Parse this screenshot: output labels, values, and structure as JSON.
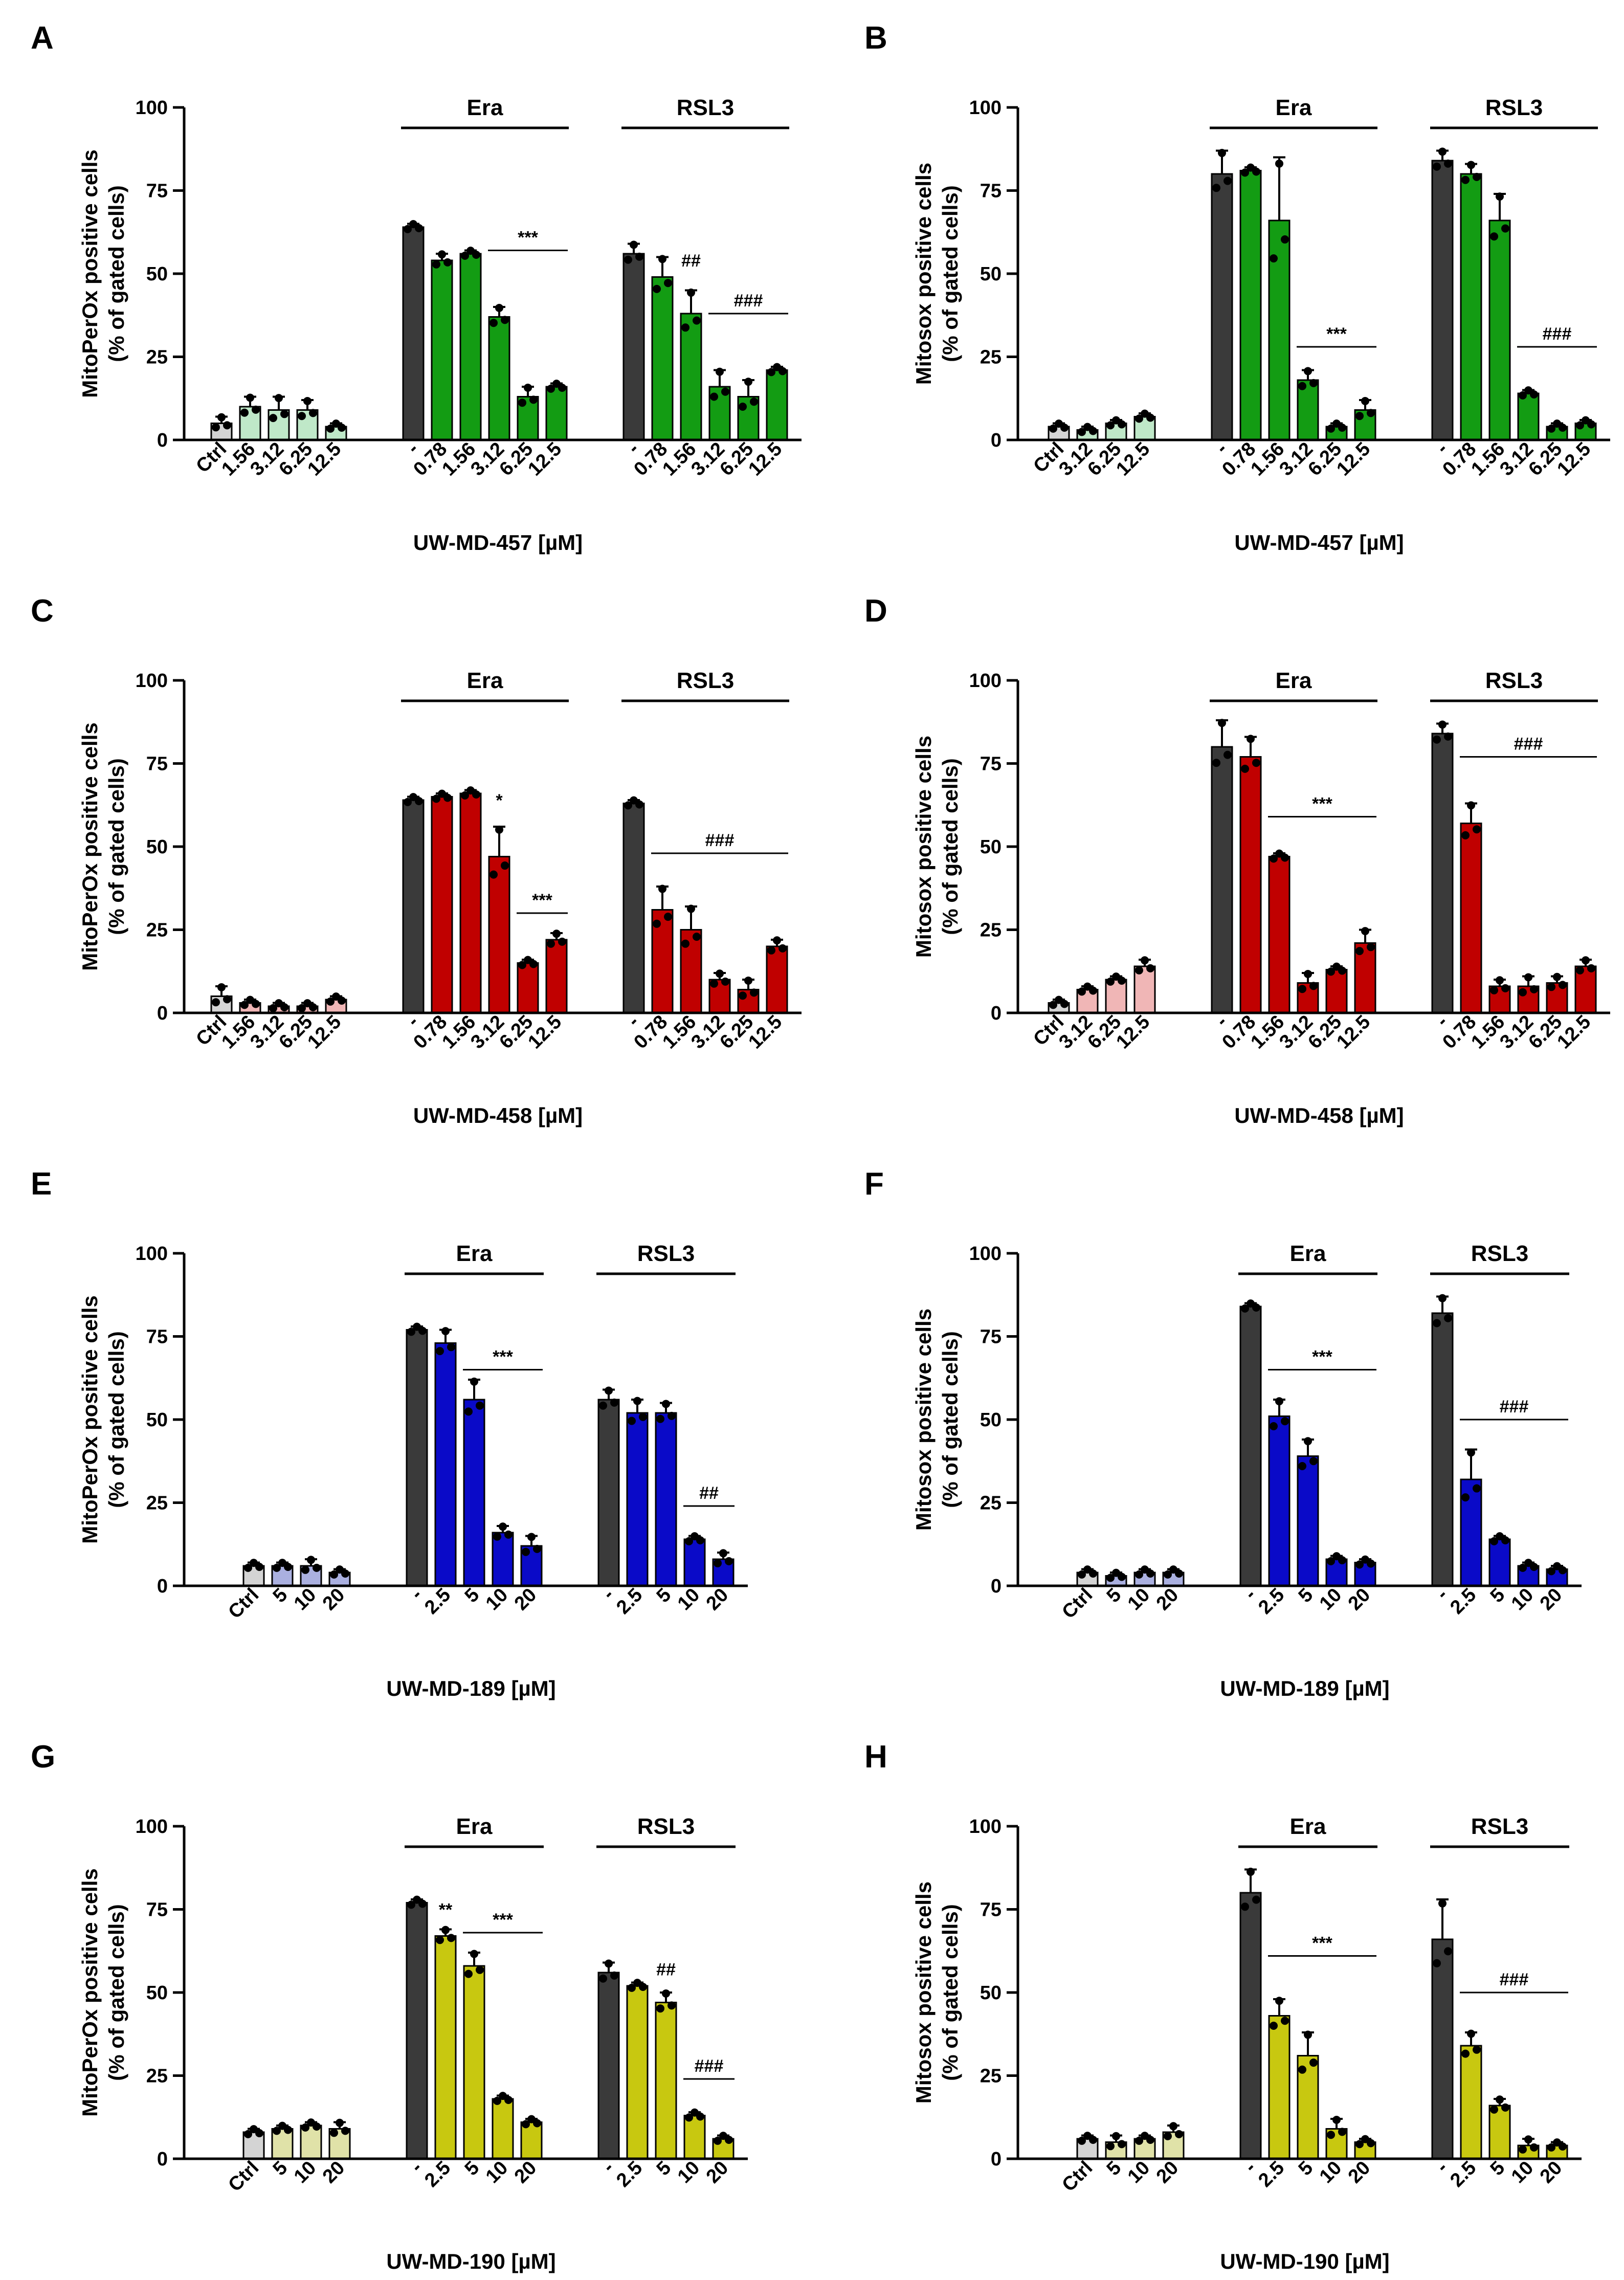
{
  "colors": {
    "control": "#3a3a3a",
    "light_green": "#bfe8c8",
    "green": "#139c13",
    "light_red": "#f0b6b6",
    "red": "#c00000",
    "light_blue": "#aab0e0",
    "blue": "#0a0ac8",
    "light_yellow": "#e0e2a8",
    "yellow": "#c8c810",
    "ctrl_gray": "#d4d4d4"
  },
  "chart_data": [
    {
      "panel": "A",
      "type": "bar",
      "ylabel": "MitoPerOx positive cells\n(% of gated cells)",
      "xlabel": "UW-MD-457 [µM]",
      "ylim": [
        0,
        100
      ],
      "yticks": [
        "0",
        "25",
        "50",
        "75",
        "100"
      ],
      "groups": [
        {
          "label": "",
          "categories": [
            "Ctrl",
            "1.56",
            "3.12",
            "6.25",
            "12.5"
          ],
          "values": [
            5,
            10,
            9,
            9,
            4
          ],
          "errors": [
            2,
            3,
            4,
            3,
            1
          ],
          "colors": [
            "#d4d4d4",
            "#bfe8c8",
            "#bfe8c8",
            "#bfe8c8",
            "#bfe8c8"
          ]
        },
        {
          "label": "Era",
          "categories": [
            "-",
            "0.78",
            "1.56",
            "3.12",
            "6.25",
            "12.5"
          ],
          "values": [
            64,
            54,
            56,
            37,
            13,
            16
          ],
          "errors": [
            1,
            2,
            1,
            3,
            3,
            1
          ],
          "colors": [
            "#3a3a3a",
            "#139c13",
            "#139c13",
            "#139c13",
            "#139c13",
            "#139c13"
          ]
        },
        {
          "label": "RSL3",
          "categories": [
            "-",
            "0.78",
            "1.56",
            "3.12",
            "6.25",
            "12.5"
          ],
          "values": [
            56,
            49,
            38,
            16,
            13,
            21
          ],
          "errors": [
            3,
            6,
            7,
            5,
            5,
            1
          ],
          "colors": [
            "#3a3a3a",
            "#139c13",
            "#139c13",
            "#139c13",
            "#139c13",
            "#139c13"
          ]
        }
      ],
      "annotations": [
        {
          "text": "***",
          "group": 1,
          "from": 3,
          "to": 5,
          "y": 57
        },
        {
          "text": "##",
          "group": 2,
          "from": 2,
          "to": 2,
          "y": 50
        },
        {
          "text": "###",
          "group": 2,
          "from": 3,
          "to": 5,
          "y": 38
        }
      ]
    },
    {
      "panel": "B",
      "type": "bar",
      "ylabel": "Mitosox positive cells\n(% of gated cells)",
      "xlabel": "UW-MD-457 [µM]",
      "ylim": [
        0,
        100
      ],
      "yticks": [
        "0",
        "25",
        "50",
        "75",
        "100"
      ],
      "groups": [
        {
          "label": "",
          "categories": [
            "Ctrl",
            "3.12",
            "6.25",
            "12.5"
          ],
          "values": [
            4,
            3,
            5,
            7
          ],
          "errors": [
            1,
            1,
            1,
            1
          ],
          "colors": [
            "#d4d4d4",
            "#bfe8c8",
            "#bfe8c8",
            "#bfe8c8"
          ]
        },
        {
          "label": "Era",
          "categories": [
            "-",
            "0.78",
            "1.56",
            "3.12",
            "6.25",
            "12.5"
          ],
          "values": [
            80,
            81,
            66,
            18,
            4,
            9
          ],
          "errors": [
            7,
            1,
            19,
            3,
            1,
            3
          ],
          "colors": [
            "#3a3a3a",
            "#139c13",
            "#139c13",
            "#139c13",
            "#139c13",
            "#139c13"
          ]
        },
        {
          "label": "RSL3",
          "categories": [
            "-",
            "0.78",
            "1.56",
            "3.12",
            "6.25",
            "12.5"
          ],
          "values": [
            84,
            80,
            66,
            14,
            4,
            5
          ],
          "errors": [
            3,
            3,
            8,
            1,
            1,
            1
          ],
          "colors": [
            "#3a3a3a",
            "#139c13",
            "#139c13",
            "#139c13",
            "#139c13",
            "#139c13"
          ]
        }
      ],
      "annotations": [
        {
          "text": "***",
          "group": 1,
          "from": 3,
          "to": 5,
          "y": 28
        },
        {
          "text": "###",
          "group": 2,
          "from": 3,
          "to": 5,
          "y": 28
        }
      ]
    },
    {
      "panel": "C",
      "type": "bar",
      "ylabel": "MitoPerOx positive cells\n(% of gated cells)",
      "xlabel": "UW-MD-458 [µM]",
      "ylim": [
        0,
        100
      ],
      "yticks": [
        "0",
        "25",
        "50",
        "75",
        "100"
      ],
      "groups": [
        {
          "label": "",
          "categories": [
            "Ctrl",
            "1.56",
            "3.12",
            "6.25",
            "12.5"
          ],
          "values": [
            5,
            3,
            2,
            2,
            4
          ],
          "errors": [
            3,
            1,
            1,
            1,
            1
          ],
          "colors": [
            "#d4d4d4",
            "#f0b6b6",
            "#f0b6b6",
            "#f0b6b6",
            "#f0b6b6"
          ]
        },
        {
          "label": "Era",
          "categories": [
            "-",
            "0.78",
            "1.56",
            "3.12",
            "6.25",
            "12.5"
          ],
          "values": [
            64,
            65,
            66,
            47,
            15,
            22
          ],
          "errors": [
            1,
            1,
            1,
            9,
            1,
            2
          ],
          "colors": [
            "#3a3a3a",
            "#c00000",
            "#c00000",
            "#c00000",
            "#c00000",
            "#c00000"
          ]
        },
        {
          "label": "RSL3",
          "categories": [
            "-",
            "0.78",
            "1.56",
            "3.12",
            "6.25",
            "12.5"
          ],
          "values": [
            63,
            31,
            25,
            10,
            7,
            20
          ],
          "errors": [
            1,
            7,
            7,
            2,
            3,
            2
          ],
          "colors": [
            "#3a3a3a",
            "#c00000",
            "#c00000",
            "#c00000",
            "#c00000",
            "#c00000"
          ]
        }
      ],
      "annotations": [
        {
          "text": "*",
          "group": 1,
          "from": 3,
          "to": 3,
          "y": 60
        },
        {
          "text": "***",
          "group": 1,
          "from": 4,
          "to": 5,
          "y": 30
        },
        {
          "text": "###",
          "group": 2,
          "from": 1,
          "to": 5,
          "y": 48
        }
      ]
    },
    {
      "panel": "D",
      "type": "bar",
      "ylabel": "Mitosox positive cells\n(% of gated cells)",
      "xlabel": "UW-MD-458 [µM]",
      "ylim": [
        0,
        100
      ],
      "yticks": [
        "0",
        "25",
        "50",
        "75",
        "100"
      ],
      "groups": [
        {
          "label": "",
          "categories": [
            "Ctrl",
            "3.12",
            "6.25",
            "12.5"
          ],
          "values": [
            3,
            7,
            10,
            14
          ],
          "errors": [
            1,
            1,
            1,
            2
          ],
          "colors": [
            "#d4d4d4",
            "#f0b6b6",
            "#f0b6b6",
            "#f0b6b6"
          ]
        },
        {
          "label": "Era",
          "categories": [
            "-",
            "0.78",
            "1.56",
            "3.12",
            "6.25",
            "12.5"
          ],
          "values": [
            80,
            77,
            47,
            9,
            13,
            21
          ],
          "errors": [
            8,
            6,
            1,
            3,
            1,
            4
          ],
          "colors": [
            "#3a3a3a",
            "#c00000",
            "#c00000",
            "#c00000",
            "#c00000",
            "#c00000"
          ]
        },
        {
          "label": "RSL3",
          "categories": [
            "-",
            "0.78",
            "1.56",
            "3.12",
            "6.25",
            "12.5"
          ],
          "values": [
            84,
            57,
            8,
            8,
            9,
            14
          ],
          "errors": [
            3,
            6,
            2,
            3,
            2,
            2
          ],
          "colors": [
            "#3a3a3a",
            "#c00000",
            "#c00000",
            "#c00000",
            "#c00000",
            "#c00000"
          ]
        }
      ],
      "annotations": [
        {
          "text": "***",
          "group": 1,
          "from": 2,
          "to": 5,
          "y": 59
        },
        {
          "text": "###",
          "group": 2,
          "from": 1,
          "to": 5,
          "y": 77
        }
      ]
    },
    {
      "panel": "E",
      "type": "bar",
      "ylabel": "MitoPerOx positive cells\n(% of gated cells)",
      "xlabel": "UW-MD-189 [µM]",
      "ylim": [
        0,
        100
      ],
      "yticks": [
        "0",
        "25",
        "50",
        "75",
        "100"
      ],
      "groups": [
        {
          "label": "",
          "categories": [
            "Ctrl",
            "5",
            "10",
            "20"
          ],
          "values": [
            6,
            6,
            6,
            4
          ],
          "errors": [
            1,
            1,
            2,
            1
          ],
          "colors": [
            "#d4d4d4",
            "#aab0e0",
            "#aab0e0",
            "#aab0e0"
          ]
        },
        {
          "label": "Era",
          "categories": [
            "-",
            "2.5",
            "5",
            "10",
            "20"
          ],
          "values": [
            77,
            73,
            56,
            16,
            12
          ],
          "errors": [
            1,
            4,
            6,
            2,
            3
          ],
          "colors": [
            "#3a3a3a",
            "#0a0ac8",
            "#0a0ac8",
            "#0a0ac8",
            "#0a0ac8"
          ]
        },
        {
          "label": "RSL3",
          "categories": [
            "-",
            "2.5",
            "5",
            "10",
            "20"
          ],
          "values": [
            56,
            52,
            52,
            14,
            8
          ],
          "errors": [
            3,
            4,
            3,
            1,
            2
          ],
          "colors": [
            "#3a3a3a",
            "#0a0ac8",
            "#0a0ac8",
            "#0a0ac8",
            "#0a0ac8"
          ]
        }
      ],
      "annotations": [
        {
          "text": "***",
          "group": 1,
          "from": 2,
          "to": 4,
          "y": 65
        },
        {
          "text": "##",
          "group": 2,
          "from": 3,
          "to": 4,
          "y": 24
        }
      ]
    },
    {
      "panel": "F",
      "type": "bar",
      "ylabel": "Mitosox positive cells\n(% of gated cells)",
      "xlabel": "UW-MD-189 [µM]",
      "ylim": [
        0,
        100
      ],
      "yticks": [
        "0",
        "25",
        "50",
        "75",
        "100"
      ],
      "groups": [
        {
          "label": "",
          "categories": [
            "Ctrl",
            "5",
            "10",
            "20"
          ],
          "values": [
            4,
            3,
            4,
            4
          ],
          "errors": [
            1,
            1,
            1,
            1
          ],
          "colors": [
            "#d4d4d4",
            "#aab0e0",
            "#aab0e0",
            "#aab0e0"
          ]
        },
        {
          "label": "Era",
          "categories": [
            "-",
            "2.5",
            "5",
            "10",
            "20"
          ],
          "values": [
            84,
            51,
            39,
            8,
            7
          ],
          "errors": [
            1,
            5,
            5,
            1,
            1
          ],
          "colors": [
            "#3a3a3a",
            "#0a0ac8",
            "#0a0ac8",
            "#0a0ac8",
            "#0a0ac8"
          ]
        },
        {
          "label": "RSL3",
          "categories": [
            "-",
            "2.5",
            "5",
            "10",
            "20"
          ],
          "values": [
            82,
            32,
            14,
            6,
            5
          ],
          "errors": [
            5,
            9,
            1,
            1,
            1
          ],
          "colors": [
            "#3a3a3a",
            "#0a0ac8",
            "#0a0ac8",
            "#0a0ac8",
            "#0a0ac8"
          ]
        }
      ],
      "annotations": [
        {
          "text": "***",
          "group": 1,
          "from": 1,
          "to": 4,
          "y": 65
        },
        {
          "text": "###",
          "group": 2,
          "from": 1,
          "to": 4,
          "y": 50
        }
      ]
    },
    {
      "panel": "G",
      "type": "bar",
      "ylabel": "MitoPerOx positive cells\n(% of gated cells)",
      "xlabel": "UW-MD-190 [µM]",
      "ylim": [
        0,
        100
      ],
      "yticks": [
        "0",
        "25",
        "50",
        "75",
        "100"
      ],
      "groups": [
        {
          "label": "",
          "categories": [
            "Ctrl",
            "5",
            "10",
            "20"
          ],
          "values": [
            8,
            9,
            10,
            9
          ],
          "errors": [
            1,
            1,
            1,
            2
          ],
          "colors": [
            "#d4d4d4",
            "#e0e2a8",
            "#e0e2a8",
            "#e0e2a8"
          ]
        },
        {
          "label": "Era",
          "categories": [
            "-",
            "2.5",
            "5",
            "10",
            "20"
          ],
          "values": [
            77,
            67,
            58,
            18,
            11
          ],
          "errors": [
            1,
            2,
            4,
            1,
            1
          ],
          "colors": [
            "#3a3a3a",
            "#c8c810",
            "#c8c810",
            "#c8c810",
            "#c8c810"
          ]
        },
        {
          "label": "RSL3",
          "categories": [
            "-",
            "2.5",
            "5",
            "10",
            "20"
          ],
          "values": [
            56,
            52,
            47,
            13,
            6
          ],
          "errors": [
            3,
            1,
            3,
            1,
            1
          ],
          "colors": [
            "#3a3a3a",
            "#c8c810",
            "#c8c810",
            "#c8c810",
            "#c8c810"
          ]
        }
      ],
      "annotations": [
        {
          "text": "**",
          "group": 1,
          "from": 1,
          "to": 1,
          "y": 71
        },
        {
          "text": "***",
          "group": 1,
          "from": 2,
          "to": 4,
          "y": 68
        },
        {
          "text": "##",
          "group": 2,
          "from": 2,
          "to": 2,
          "y": 53
        },
        {
          "text": "###",
          "group": 2,
          "from": 3,
          "to": 4,
          "y": 24
        }
      ]
    },
    {
      "panel": "H",
      "type": "bar",
      "ylabel": "Mitosox positive cells\n(% of gated cells)",
      "xlabel": "UW-MD-190 [µM]",
      "ylim": [
        0,
        100
      ],
      "yticks": [
        "0",
        "25",
        "50",
        "75",
        "100"
      ],
      "groups": [
        {
          "label": "",
          "categories": [
            "Ctrl",
            "5",
            "10",
            "20"
          ],
          "values": [
            6,
            5,
            6,
            8
          ],
          "errors": [
            1,
            2,
            1,
            2
          ],
          "colors": [
            "#d4d4d4",
            "#e0e2a8",
            "#e0e2a8",
            "#e0e2a8"
          ]
        },
        {
          "label": "Era",
          "categories": [
            "-",
            "2.5",
            "5",
            "10",
            "20"
          ],
          "values": [
            80,
            43,
            31,
            9,
            5
          ],
          "errors": [
            7,
            5,
            7,
            3,
            1
          ],
          "colors": [
            "#3a3a3a",
            "#c8c810",
            "#c8c810",
            "#c8c810",
            "#c8c810"
          ]
        },
        {
          "label": "RSL3",
          "categories": [
            "-",
            "2.5",
            "5",
            "10",
            "20"
          ],
          "values": [
            66,
            34,
            16,
            4,
            4
          ],
          "errors": [
            12,
            4,
            2,
            2,
            1
          ],
          "colors": [
            "#3a3a3a",
            "#c8c810",
            "#c8c810",
            "#c8c810",
            "#c8c810"
          ]
        }
      ],
      "annotations": [
        {
          "text": "***",
          "group": 1,
          "from": 1,
          "to": 4,
          "y": 61
        },
        {
          "text": "###",
          "group": 2,
          "from": 1,
          "to": 4,
          "y": 50
        }
      ]
    }
  ]
}
